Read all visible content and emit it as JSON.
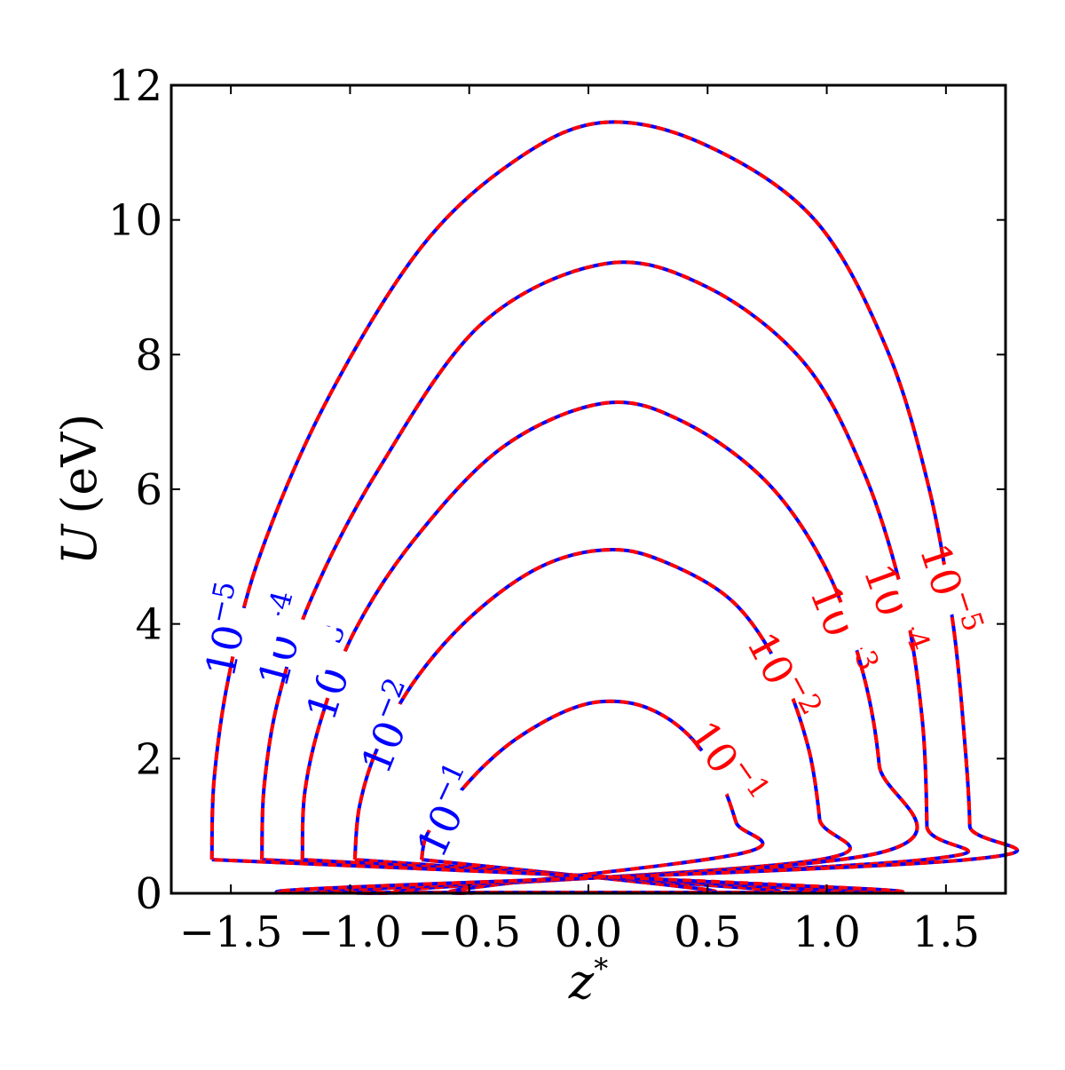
{
  "chart_data": {
    "type": "line",
    "chart_kind": "contour",
    "title": "",
    "xlabel": {
      "symbol": "z",
      "superscript": "*"
    },
    "ylabel": {
      "symbol": "U",
      "unit": "(eV)"
    },
    "xlim": [
      -1.75,
      1.75
    ],
    "ylim": [
      0,
      12
    ],
    "x_ticks": [
      -1.5,
      -1.0,
      -0.5,
      0.0,
      0.5,
      1.0,
      1.5
    ],
    "x_tick_labels": [
      "−1.5",
      "−1.0",
      "−0.5",
      "0.0",
      "0.5",
      "1.0",
      "1.5"
    ],
    "y_ticks": [
      0,
      2,
      4,
      6,
      8,
      10,
      12
    ],
    "y_tick_labels": [
      "0",
      "2",
      "4",
      "6",
      "8",
      "10",
      "12"
    ],
    "grid": false,
    "colors": {
      "blue": "#0000ff",
      "red": "#ff0000"
    },
    "contour_levels": [
      {
        "base": "10",
        "exponent": "−1",
        "peak_x": 0.07,
        "peak_y": 2.85,
        "left": [
          [
            -0.7,
            0.5
          ],
          [
            -0.68,
            0.85
          ],
          [
            -0.6,
            1.25
          ],
          [
            -0.45,
            1.85
          ],
          [
            -0.3,
            2.3
          ],
          [
            -0.1,
            2.7
          ]
        ],
        "right": [
          [
            0.25,
            2.75
          ],
          [
            0.42,
            2.35
          ],
          [
            0.55,
            1.7
          ],
          [
            0.62,
            1.05
          ],
          [
            0.65,
            0.6
          ]
        ],
        "blue_label": {
          "x": -0.58,
          "y": 1.2,
          "angle": -65
        },
        "red_label": {
          "x": 0.57,
          "y": 1.9,
          "angle": 55
        }
      },
      {
        "base": "10",
        "exponent": "−2",
        "peak_x": 0.07,
        "peak_y": 5.1,
        "left": [
          [
            -0.98,
            0.5
          ],
          [
            -0.96,
            1.3
          ],
          [
            -0.88,
            2.2
          ],
          [
            -0.72,
            3.2
          ],
          [
            -0.48,
            4.15
          ],
          [
            -0.2,
            4.85
          ]
        ],
        "right": [
          [
            0.3,
            4.95
          ],
          [
            0.6,
            4.35
          ],
          [
            0.8,
            3.35
          ],
          [
            0.92,
            2.2
          ],
          [
            0.97,
            1.1
          ],
          [
            0.97,
            0.5
          ]
        ],
        "blue_label": {
          "x": -0.82,
          "y": 2.45,
          "angle": -68
        },
        "red_label": {
          "x": 0.8,
          "y": 3.2,
          "angle": 62
        }
      },
      {
        "base": "10",
        "exponent": "−3",
        "peak_x": 0.07,
        "peak_y": 7.28,
        "left": [
          [
            -1.2,
            0.5
          ],
          [
            -1.19,
            1.5
          ],
          [
            -1.12,
            2.6
          ],
          [
            -0.98,
            3.9
          ],
          [
            -0.72,
            5.3
          ],
          [
            -0.35,
            6.65
          ]
        ],
        "right": [
          [
            0.4,
            7.0
          ],
          [
            0.75,
            6.1
          ],
          [
            1.0,
            4.8
          ],
          [
            1.15,
            3.3
          ],
          [
            1.22,
            1.9
          ],
          [
            1.22,
            0.6
          ]
        ],
        "blue_label": {
          "x": -1.06,
          "y": 3.25,
          "angle": -72
        },
        "red_label": {
          "x": 1.05,
          "y": 3.9,
          "angle": 68
        }
      },
      {
        "base": "10",
        "exponent": "−4",
        "peak_x": 0.07,
        "peak_y": 9.35,
        "left": [
          [
            -1.37,
            0.5
          ],
          [
            -1.36,
            1.6
          ],
          [
            -1.3,
            2.9
          ],
          [
            -1.16,
            4.4
          ],
          [
            -0.88,
            6.3
          ],
          [
            -0.45,
            8.45
          ]
        ],
        "right": [
          [
            0.5,
            9.0
          ],
          [
            0.9,
            7.9
          ],
          [
            1.15,
            6.3
          ],
          [
            1.32,
            4.4
          ],
          [
            1.4,
            2.6
          ],
          [
            1.42,
            1.0
          ],
          [
            1.41,
            0.5
          ]
        ],
        "blue_label": {
          "x": -1.27,
          "y": 3.75,
          "angle": -75
        },
        "red_label": {
          "x": 1.27,
          "y": 4.2,
          "angle": 70
        }
      },
      {
        "base": "10",
        "exponent": "−5",
        "peak_x": 0.07,
        "peak_y": 11.45,
        "left": [
          [
            -1.58,
            0.5
          ],
          [
            -1.57,
            1.7
          ],
          [
            -1.51,
            3.2
          ],
          [
            -1.38,
            5.0
          ],
          [
            -1.1,
            7.3
          ],
          [
            -0.7,
            9.6
          ],
          [
            -0.3,
            10.9
          ]
        ],
        "right": [
          [
            0.5,
            11.1
          ],
          [
            0.95,
            10.0
          ],
          [
            1.25,
            8.1
          ],
          [
            1.43,
            6.0
          ],
          [
            1.53,
            4.0
          ],
          [
            1.58,
            2.2
          ],
          [
            1.6,
            1.0
          ],
          [
            1.59,
            0.5
          ]
        ],
        "blue_label": {
          "x": -1.5,
          "y": 3.9,
          "angle": -78
        },
        "red_label": {
          "x": 1.5,
          "y": 4.5,
          "angle": 72
        }
      }
    ]
  }
}
